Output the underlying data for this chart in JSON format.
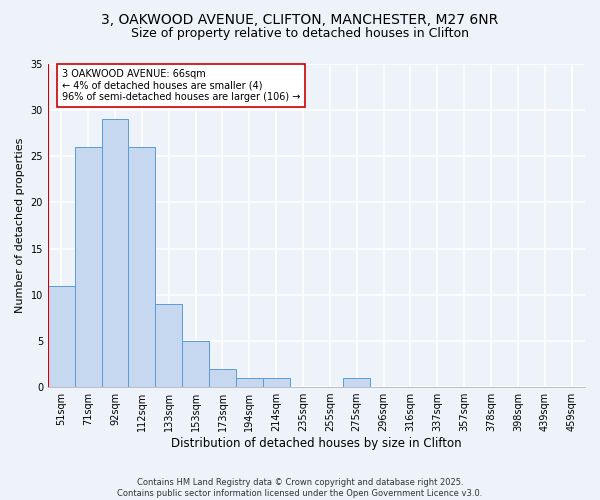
{
  "title1": "3, OAKWOOD AVENUE, CLIFTON, MANCHESTER, M27 6NR",
  "title2": "Size of property relative to detached houses in Clifton",
  "xlabel": "Distribution of detached houses by size in Clifton",
  "ylabel": "Number of detached properties",
  "bar_labels": [
    "51sqm",
    "71sqm",
    "92sqm",
    "112sqm",
    "133sqm",
    "153sqm",
    "173sqm",
    "194sqm",
    "214sqm",
    "235sqm",
    "255sqm",
    "275sqm",
    "296sqm",
    "316sqm",
    "337sqm",
    "357sqm",
    "378sqm",
    "398sqm",
    "439sqm",
    "459sqm"
  ],
  "bar_values": [
    11,
    26,
    29,
    26,
    9,
    5,
    2,
    1,
    1,
    0,
    0,
    1,
    0,
    0,
    0,
    0,
    0,
    0,
    0,
    0
  ],
  "bar_color": "#c5d8f0",
  "bar_edge_color": "#5b9bd5",
  "vline_color": "#cc0000",
  "annotation_text": "3 OAKWOOD AVENUE: 66sqm\n← 4% of detached houses are smaller (4)\n96% of semi-detached houses are larger (106) →",
  "annotation_box_color": "#ffffff",
  "annotation_box_edge": "#cc0000",
  "ylim": [
    0,
    35
  ],
  "yticks": [
    0,
    5,
    10,
    15,
    20,
    25,
    30,
    35
  ],
  "footer_text": "Contains HM Land Registry data © Crown copyright and database right 2025.\nContains public sector information licensed under the Open Government Licence v3.0.",
  "bg_color": "#eef2f9",
  "plot_bg_color": "#eef2f9",
  "grid_color": "#ffffff",
  "title_fontsize": 10,
  "subtitle_fontsize": 9,
  "tick_fontsize": 7,
  "ylabel_fontsize": 8,
  "xlabel_fontsize": 8.5,
  "annotation_fontsize": 7,
  "footer_fontsize": 6
}
